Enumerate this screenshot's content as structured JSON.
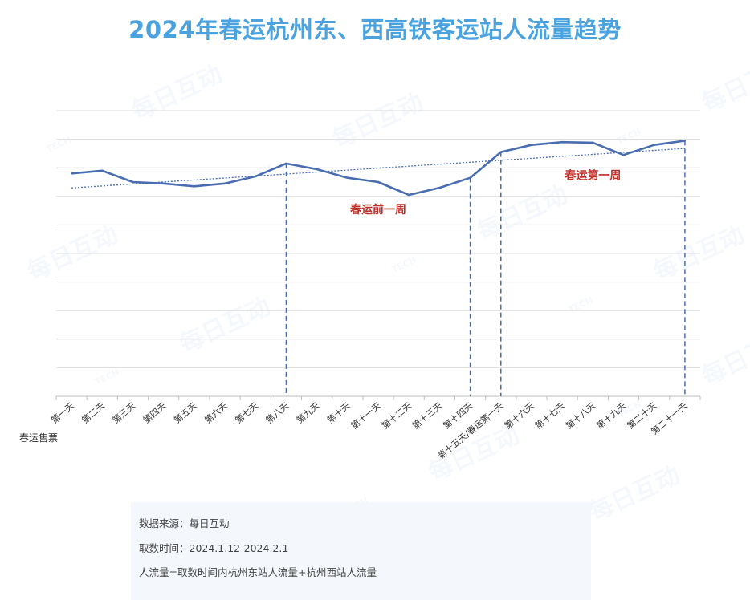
{
  "title": "2024年春运杭州东、西高铁客运站人流量趋势",
  "watermark": {
    "text": "每日互动",
    "logo_text": "TECH"
  },
  "chart_data": {
    "type": "line",
    "title": "2024年春运杭州东、西高铁客运站人流量趋势",
    "categories": [
      "第一天",
      "第二天",
      "第三天",
      "第四天",
      "第五天",
      "第六天",
      "第七天",
      "第八天",
      "第九天",
      "第十天",
      "第十一天",
      "第十二天",
      "第十三天",
      "第十四天",
      "第十五天/春运第一天",
      "第十六天",
      "第十七天",
      "第十八天",
      "第十九天",
      "第二十天",
      "第二十一天"
    ],
    "series": [
      {
        "values": [
          7.8,
          7.9,
          7.5,
          7.45,
          7.35,
          7.45,
          7.7,
          8.15,
          7.95,
          7.65,
          7.5,
          7.05,
          7.3,
          7.65,
          8.55,
          8.8,
          8.9,
          8.88,
          8.45,
          8.8,
          8.95
        ],
        "color": "#4a6db0"
      }
    ],
    "trendline": {
      "style": "dotted",
      "color": "#4a6db0"
    },
    "ylim": [
      0,
      10
    ],
    "gridlines": 10,
    "y_tick_labels": false,
    "xlabel": "",
    "ylabel": "",
    "x_side_label": "春运售票",
    "periods": [
      {
        "label": "春运前一周",
        "start": "第八天",
        "end": "第十四天",
        "color": "#c0302a"
      },
      {
        "label": "春运第一周",
        "start": "第十五天/春运第一天",
        "end": "第二十一天",
        "color": "#c0302a"
      }
    ]
  },
  "notes": {
    "source": "数据来源：每日互动",
    "period": "取数时间：2024.1.12-2024.2.1",
    "definition": "人流量=取数时间内杭州东站人流量+杭州西站人流量"
  }
}
